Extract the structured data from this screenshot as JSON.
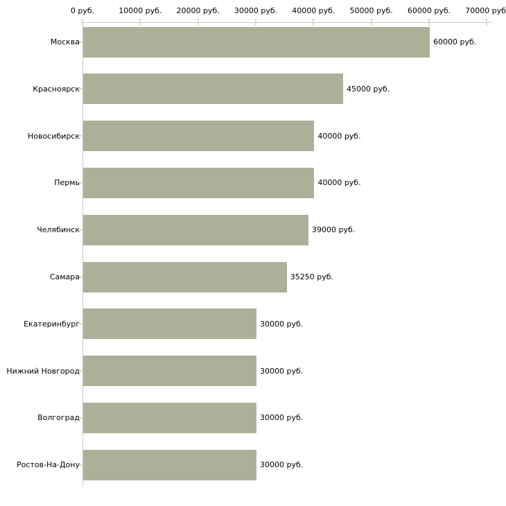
{
  "chart_data": {
    "type": "bar",
    "orientation": "horizontal",
    "title": "",
    "xlabel": "",
    "ylabel": "",
    "unit": "руб.",
    "categories": [
      "Москва",
      "Красноярск",
      "Новосибирск",
      "Пермь",
      "Челябинск",
      "Самара",
      "Екатеринбург",
      "Нижний Новгород",
      "Волгоград",
      "Ростов-На-Дону"
    ],
    "values": [
      60000,
      45000,
      40000,
      40000,
      39000,
      35250,
      30000,
      30000,
      30000,
      30000
    ],
    "value_labels": [
      "60000 руб.",
      "45000 руб.",
      "40000 руб.",
      "40000 руб.",
      "39000 руб.",
      "35250 руб.",
      "30000 руб.",
      "30000 руб.",
      "30000 руб.",
      "30000 руб."
    ],
    "x_ticks": [
      0,
      10000,
      20000,
      30000,
      40000,
      50000,
      60000,
      70000
    ],
    "x_tick_labels": [
      "0 руб.",
      "10000 руб.",
      "20000 руб.",
      "30000 руб.",
      "40000 руб.",
      "50000 руб.",
      "60000 руб.",
      "70000 руб."
    ],
    "xlim": [
      0,
      70000
    ],
    "x_axis_position": "top",
    "grid": false,
    "legend": false,
    "colors": {
      "bar": "#abb198",
      "axis_line": "#c8c8c8",
      "tick": "#d9dbc2",
      "text": "#000000",
      "background": "#ffffff"
    }
  }
}
